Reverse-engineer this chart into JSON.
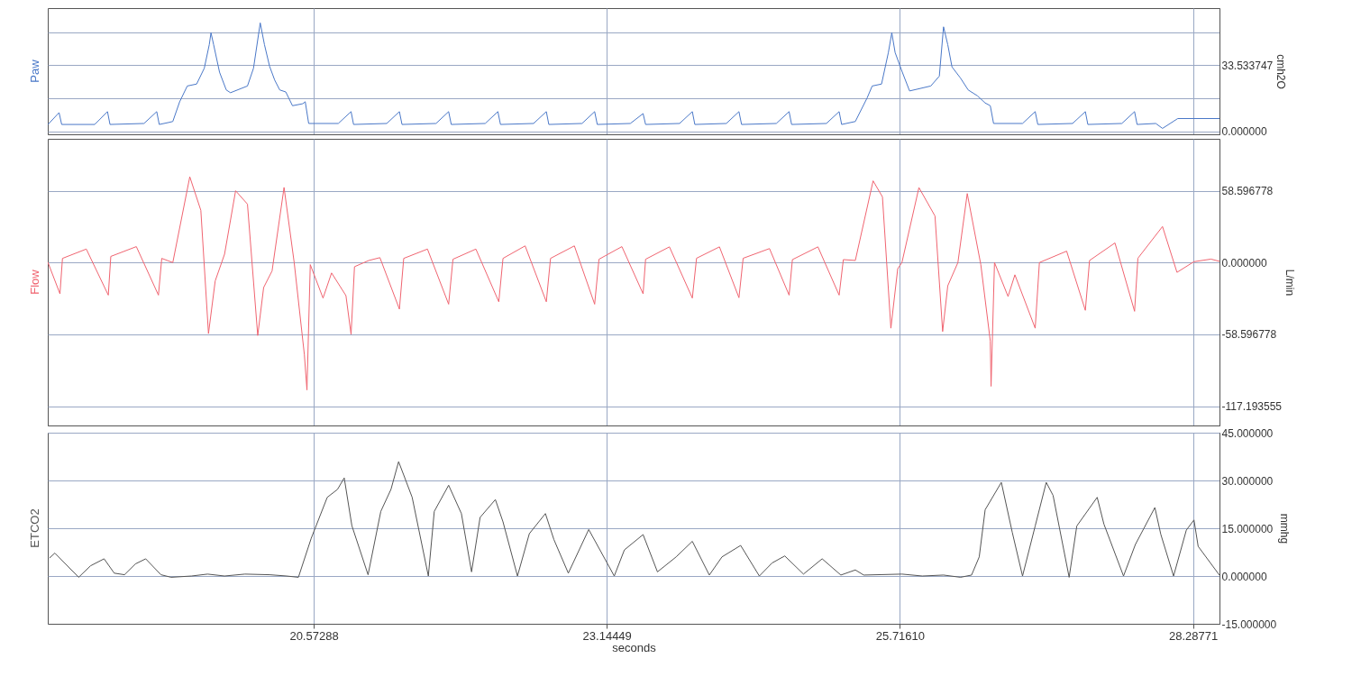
{
  "chart_data": [
    {
      "type": "line",
      "ylabel": "cmh2O",
      "grid": true,
      "tick_labels": "y",
      "xlim": [
        18.24,
        28.52
      ],
      "xticks": [
        {
          "value": 20.57288,
          "label": null
        },
        {
          "value": 23.14449,
          "label": null
        },
        {
          "value": 25.7161,
          "label": null
        },
        {
          "value": 28.28771,
          "label": null
        }
      ],
      "ylim": [
        -1.5,
        62.5
      ],
      "yticks": [
        {
          "value": 0,
          "label": "0.000000"
        },
        {
          "value": 16.766874,
          "label": null
        },
        33.533747,
        {
          "value": 50.30062,
          "label": null
        }
      ],
      "x": [
        18.242,
        18.339,
        18.362,
        18.652,
        18.764,
        18.786,
        19.084,
        19.196,
        19.218,
        19.3,
        19.337,
        19.397,
        19.464,
        19.546,
        19.613,
        19.657,
        19.672,
        19.695,
        19.747,
        19.806,
        19.843,
        19.992,
        20.045,
        20.104,
        20.141,
        20.186,
        20.231,
        20.275,
        20.328,
        20.387,
        20.476,
        20.499,
        20.529,
        20.789,
        20.901,
        20.923,
        21.214,
        21.325,
        21.348,
        21.646,
        21.757,
        21.78,
        22.078,
        22.189,
        22.212,
        22.502,
        22.614,
        22.636,
        22.927,
        23.038,
        23.061,
        23.351,
        23.463,
        23.485,
        23.783,
        23.895,
        23.917,
        24.193,
        24.304,
        24.327,
        24.632,
        24.744,
        24.766,
        25.071,
        25.183,
        25.205,
        25.325,
        25.429,
        25.473,
        25.555,
        25.615,
        25.645,
        25.674,
        25.734,
        25.801,
        25.987,
        26.062,
        26.099,
        26.136,
        26.173,
        26.248,
        26.315,
        26.397,
        26.464,
        26.509,
        26.538,
        26.792,
        26.903,
        26.926,
        27.231,
        27.343,
        27.365,
        27.663,
        27.775,
        27.797,
        27.961,
        28.02,
        28.154,
        28.519
      ],
      "series": [
        {
          "name": "Paw",
          "color": "#4a78c8",
          "values": [
            3.5,
            9.5,
            3.5,
            3.5,
            10,
            3.5,
            4,
            10,
            3.5,
            4.5,
            5,
            15,
            23,
            24,
            32,
            44,
            50,
            44,
            30,
            21,
            19.6,
            23,
            32,
            55,
            44,
            33,
            26,
            21,
            20,
            13,
            14,
            15,
            4,
            4,
            10,
            3.5,
            4,
            10,
            3.5,
            4,
            10,
            3.5,
            4,
            10,
            3.5,
            4,
            10,
            3.5,
            4,
            10,
            3.5,
            4,
            9,
            3.5,
            4,
            10,
            3.5,
            4,
            10,
            3.5,
            4,
            10,
            3.5,
            4,
            10,
            3.5,
            5,
            17,
            23,
            24,
            40,
            50,
            40,
            30.5,
            20.5,
            23,
            28,
            53,
            44,
            32.7,
            27,
            21,
            18,
            14.4,
            13,
            4,
            4,
            10,
            3.5,
            4,
            10,
            3.5,
            4,
            10,
            3.5,
            4,
            1.5,
            6.5,
            6.5
          ]
        }
      ]
    },
    {
      "type": "line",
      "ylabel": "L/min",
      "grid": true,
      "tick_labels": "y",
      "xlim": [
        18.24,
        28.52
      ],
      "xticks": [
        {
          "value": 20.57288,
          "label": null
        },
        {
          "value": 23.14449,
          "label": null
        },
        {
          "value": 25.7161,
          "label": null
        },
        {
          "value": 28.28771,
          "label": null
        }
      ],
      "ylim": [
        -133,
        101
      ],
      "yticks": [
        58.596778,
        {
          "value": 0,
          "label": "0.000000"
        },
        -58.596778,
        -117.193555
      ],
      "x": [
        18.242,
        18.347,
        18.369,
        18.578,
        18.771,
        18.793,
        19.017,
        19.211,
        19.24,
        19.337,
        19.486,
        19.583,
        19.65,
        19.709,
        19.791,
        19.888,
        19.992,
        20.082,
        20.134,
        20.208,
        20.313,
        20.402,
        20.491,
        20.514,
        20.543,
        20.655,
        20.73,
        20.856,
        20.901,
        20.931,
        21.057,
        21.154,
        21.325,
        21.363,
        21.571,
        21.757,
        21.795,
        21.996,
        22.197,
        22.234,
        22.428,
        22.614,
        22.651,
        22.86,
        23.038,
        23.076,
        23.277,
        23.463,
        23.485,
        23.694,
        23.895,
        23.932,
        24.133,
        24.304,
        24.341,
        24.572,
        24.744,
        24.773,
        24.997,
        25.183,
        25.22,
        25.325,
        25.481,
        25.563,
        25.637,
        25.697,
        25.734,
        25.883,
        26.024,
        26.091,
        26.136,
        26.225,
        26.307,
        26.426,
        26.509,
        26.516,
        26.546,
        26.665,
        26.725,
        26.903,
        26.94,
        27.179,
        27.343,
        27.38,
        27.603,
        27.775,
        27.804,
        28.02,
        28.147,
        28.296,
        28.445,
        28.519
      ],
      "series": [
        {
          "name": "Flow",
          "color": "#f06470",
          "values": [
            0,
            -25.5,
            3.4,
            11,
            -26.6,
            5,
            13,
            -26.6,
            3.4,
            0,
            70,
            42.6,
            -58,
            -15,
            6.8,
            58.6,
            47.7,
            -59.6,
            -20.4,
            -6.8,
            61.3,
            0,
            -75,
            -104,
            -1.7,
            -29,
            -8.5,
            -27,
            -58.6,
            -3.4,
            1.7,
            4,
            -38,
            3.4,
            11,
            -34,
            2.7,
            11,
            -32,
            3.4,
            13.6,
            -32,
            3.4,
            13.6,
            -34,
            2.7,
            13,
            -25.5,
            2.7,
            12.8,
            -29,
            3.5,
            12.8,
            -28.7,
            3.5,
            11.4,
            -26.6,
            2.4,
            12.8,
            -26.6,
            2.4,
            1.7,
            66.7,
            53.6,
            -53.6,
            -5,
            0,
            61.2,
            38,
            -56.3,
            -19,
            0,
            56.3,
            -1.7,
            -64,
            -101,
            0,
            -27.7,
            -10,
            -53.6,
            0,
            9.3,
            -39,
            1.7,
            16,
            -39.8,
            3.5,
            29.4,
            -8,
            0.7,
            2.8,
            1
          ]
        }
      ]
    },
    {
      "type": "line",
      "xlabel": "seconds",
      "ylabel": "mmhg",
      "grid": true,
      "xlim": [
        18.24,
        28.52
      ],
      "xticks": [
        20.57288,
        23.14449,
        {
          "value": 25.7161,
          "label": "25.71610"
        },
        28.28771
      ],
      "ylim": [
        -15,
        45
      ],
      "yticks": [
        {
          "value": 45,
          "label": "45.000000"
        },
        {
          "value": 30,
          "label": "30.000000"
        },
        {
          "value": 15,
          "label": "15.000000"
        },
        {
          "value": 0,
          "label": "0.000000"
        },
        {
          "value": -15,
          "label": "-15.000000"
        }
      ],
      "x": [
        18.257,
        18.302,
        18.511,
        18.615,
        18.734,
        18.823,
        18.913,
        19.009,
        19.099,
        19.233,
        19.322,
        19.501,
        19.642,
        19.791,
        19.97,
        20.186,
        20.335,
        20.439,
        20.551,
        20.692,
        20.782,
        20.841,
        20.908,
        21.05,
        21.162,
        21.251,
        21.318,
        21.363,
        21.437,
        21.579,
        21.631,
        21.757,
        21.869,
        21.958,
        22.033,
        22.167,
        22.234,
        22.361,
        22.465,
        22.606,
        22.681,
        22.807,
        22.986,
        23.21,
        23.299,
        23.463,
        23.589,
        23.753,
        23.895,
        24.044,
        24.155,
        24.319,
        24.483,
        24.595,
        24.706,
        24.87,
        25.034,
        25.198,
        25.325,
        25.399,
        25.734,
        25.913,
        26.099,
        26.248,
        26.345,
        26.412,
        26.464,
        26.606,
        26.702,
        26.792,
        26.903,
        27.0,
        27.06,
        27.201,
        27.268,
        27.447,
        27.506,
        27.678,
        27.782,
        27.953,
        28.005,
        28.117,
        28.229,
        28.296,
        28.333,
        28.519
      ],
      "series": [
        {
          "name": "ETCO2",
          "color": "#555555",
          "values": [
            5.7,
            7.2,
            -0.4,
            3.2,
            5.4,
            0.9,
            0.4,
            3.8,
            5.4,
            0.4,
            -0.4,
            0,
            0.6,
            0,
            0.6,
            0.4,
            0,
            -0.4,
            11.8,
            24.7,
            27.2,
            30.8,
            15.8,
            0.4,
            20.3,
            27.2,
            35.9,
            31.7,
            24.7,
            0,
            20.3,
            28.5,
            19.6,
            1.3,
            18.4,
            24,
            17,
            0,
            13.3,
            19.6,
            11.4,
            0.9,
            14.6,
            0,
            8.2,
            13,
            1.3,
            6,
            10.9,
            0.3,
            6,
            9.6,
            0,
            4.1,
            6.3,
            0.6,
            5.4,
            0.3,
            1.9,
            0.3,
            0.6,
            0,
            0.3,
            -0.4,
            0.3,
            6,
            20.8,
            29.4,
            13.7,
            0,
            15.7,
            29.4,
            25.3,
            -0.4,
            15.7,
            24.7,
            16.3,
            0,
            9.9,
            21.5,
            13.1,
            0,
            14.4,
            17.6,
            9.3,
            0.3
          ]
        }
      ]
    }
  ]
}
